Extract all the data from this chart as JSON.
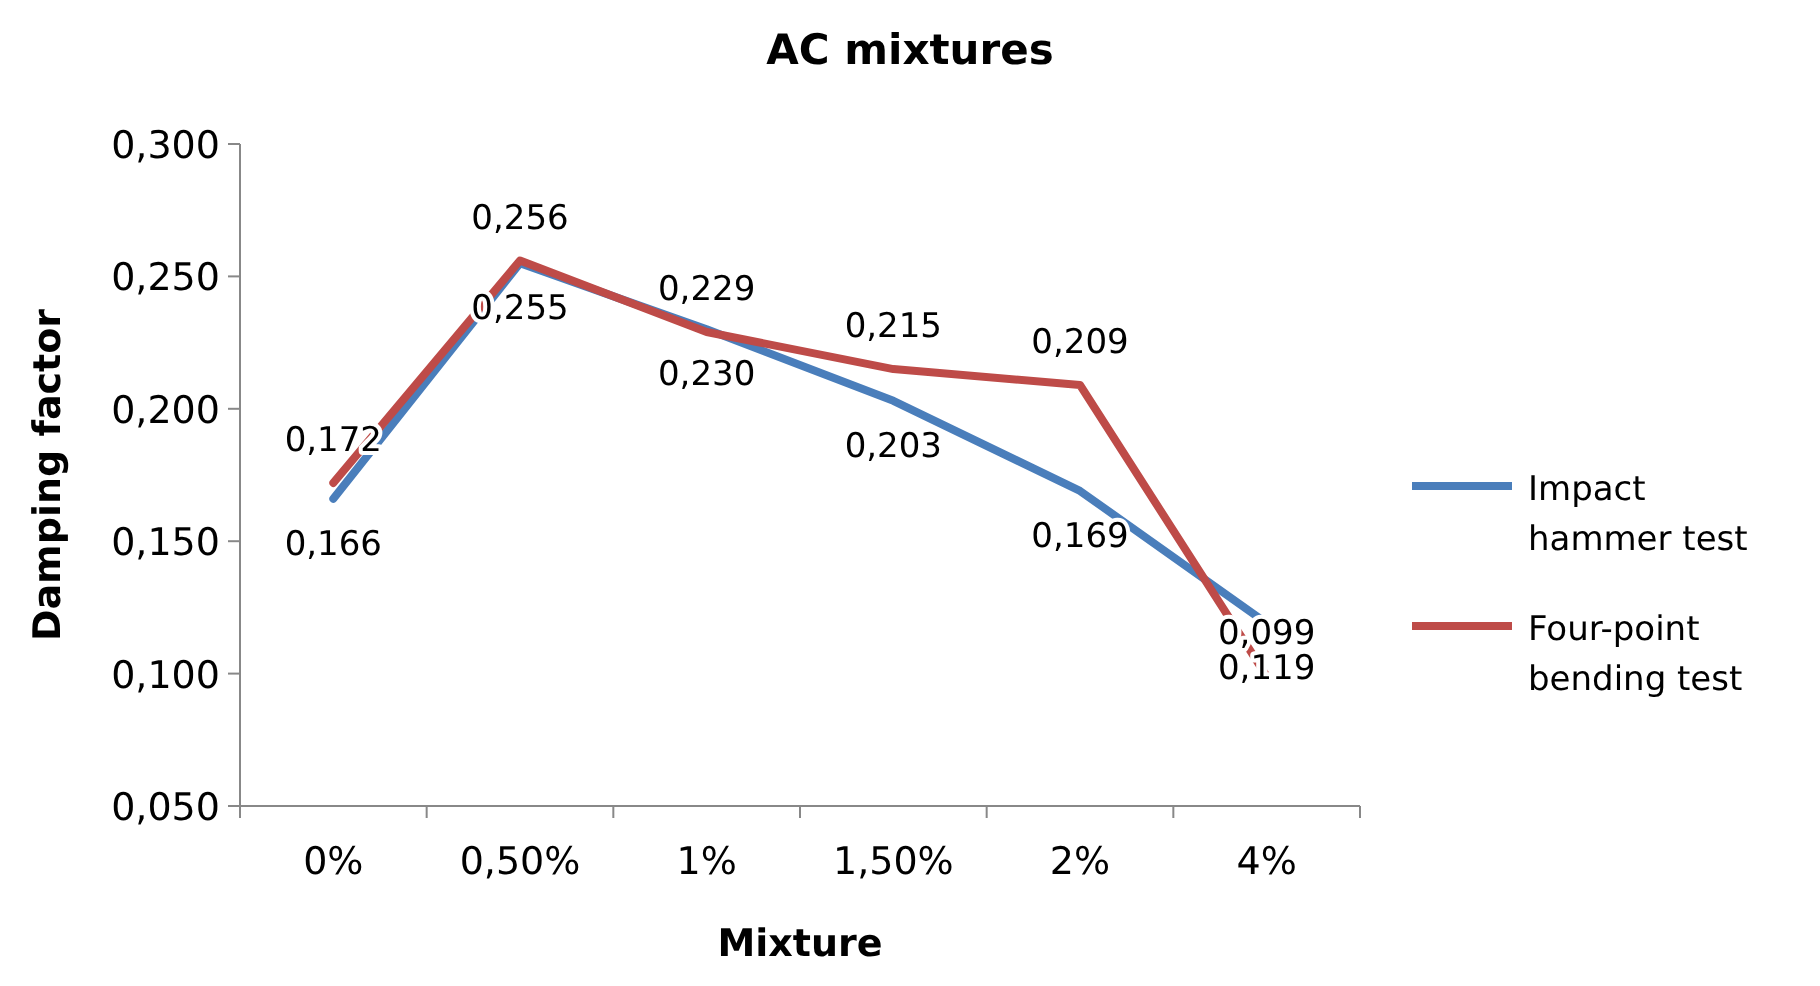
{
  "chart_data": {
    "type": "line",
    "title": "AC mixtures",
    "xlabel": "Mixture",
    "ylabel": "Damping factor",
    "categories": [
      "0%",
      "0,50%",
      "1%",
      "1,50%",
      "2%",
      "4%"
    ],
    "series": [
      {
        "name": "Impact hammer test",
        "color": "#4a7ebb",
        "values": [
          0.166,
          0.255,
          0.23,
          0.203,
          0.169,
          0.119
        ],
        "value_labels": [
          "0,166",
          "0,255",
          "0,230",
          "0,203",
          "0,169",
          "0,119"
        ]
      },
      {
        "name": "Four-point bending test",
        "color": "#be4b48",
        "values": [
          0.172,
          0.256,
          0.229,
          0.215,
          0.209,
          0.099
        ],
        "value_labels": [
          "0,172",
          "0,256",
          "0,229",
          "0,215",
          "0,209",
          "0,099"
        ]
      }
    ],
    "ylim": [
      0.05,
      0.3
    ],
    "yticks": [
      {
        "value": 0.05,
        "label": "0,050"
      },
      {
        "value": 0.1,
        "label": "0,100"
      },
      {
        "value": 0.15,
        "label": "0,150"
      },
      {
        "value": 0.2,
        "label": "0,200"
      },
      {
        "value": 0.25,
        "label": "0,250"
      },
      {
        "value": 0.3,
        "label": "0,300"
      }
    ],
    "legend": "right",
    "grid": false,
    "marker": "none",
    "line_style": "solid"
  }
}
